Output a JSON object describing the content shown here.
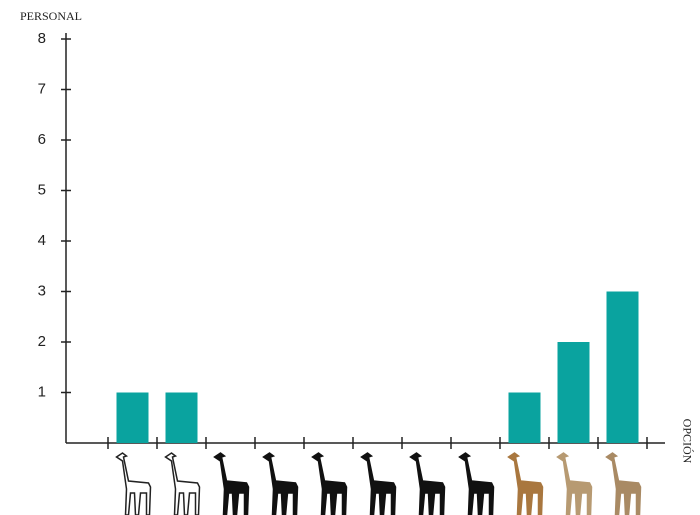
{
  "chart_data": {
    "type": "bar",
    "y_label": "PERSONAL",
    "x_label": "OPCIÓN",
    "categories": [
      null,
      null,
      null,
      null,
      null,
      null,
      null,
      null,
      null,
      null,
      null
    ],
    "values": [
      1,
      1,
      0,
      0,
      0,
      0,
      0,
      0,
      1,
      2,
      3
    ],
    "color": "#0aa39f",
    "ylim": [
      0,
      8
    ],
    "yticks": [
      1,
      2,
      3,
      4,
      5,
      6,
      7,
      8
    ],
    "grid": false
  }
}
